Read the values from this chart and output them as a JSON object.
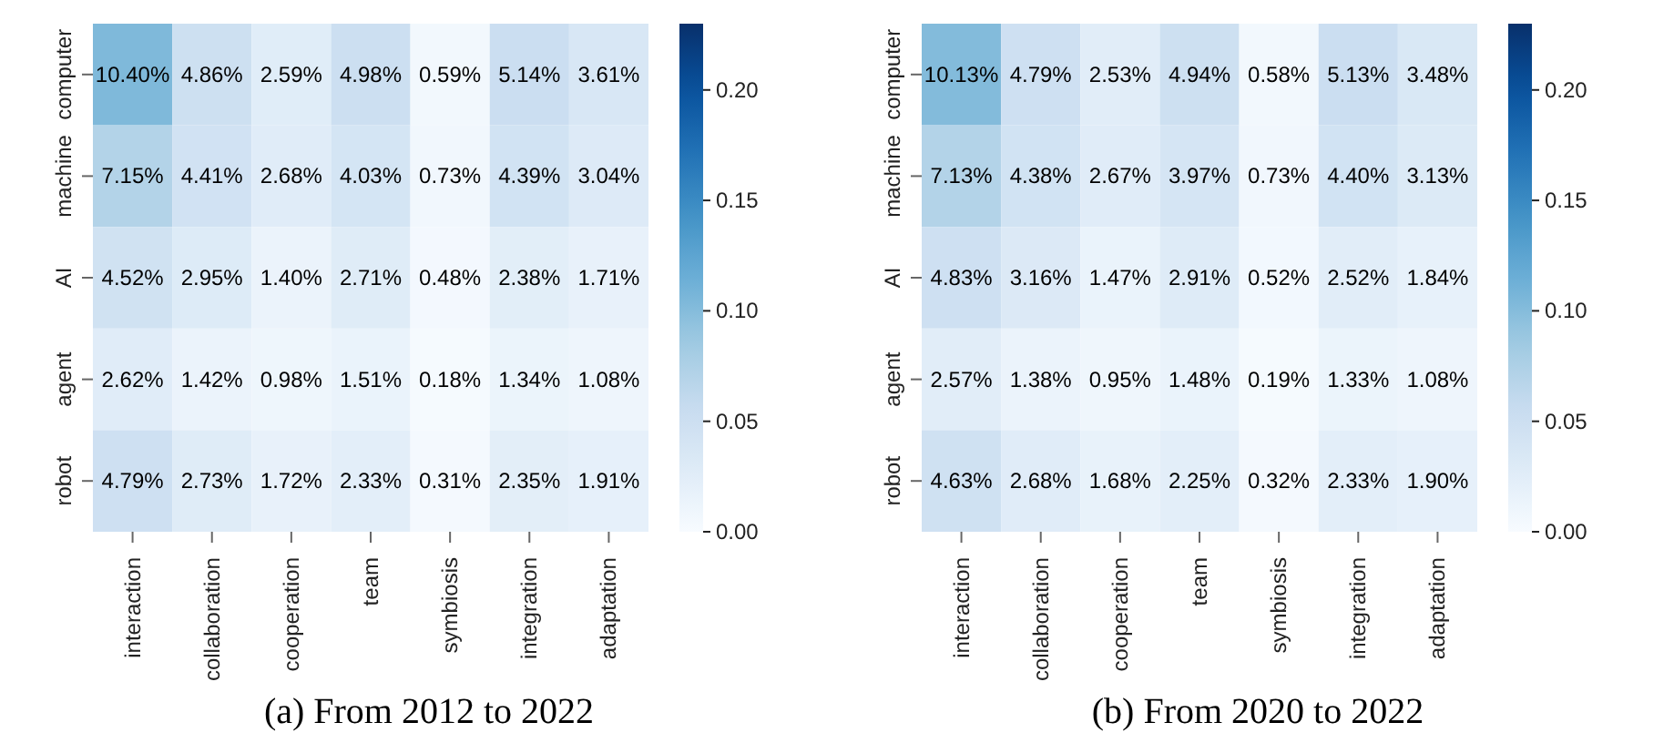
{
  "chart_data": [
    {
      "type": "heatmap",
      "title": "(a) From 2012 to 2022",
      "categories": [
        "interaction",
        "collaboration",
        "cooperation",
        "team",
        "symbiosis",
        "integration",
        "adaptation"
      ],
      "y_categories": [
        "computer",
        "machine",
        "AI",
        "agent",
        "robot"
      ],
      "cells": [
        [
          0.104,
          0.0486,
          0.0259,
          0.0498,
          0.0059,
          0.0514,
          0.0361
        ],
        [
          0.0715,
          0.0441,
          0.0268,
          0.0403,
          0.0073,
          0.0439,
          0.0304
        ],
        [
          0.0452,
          0.0295,
          0.014,
          0.0271,
          0.0048,
          0.0238,
          0.0171
        ],
        [
          0.0262,
          0.0142,
          0.0098,
          0.0151,
          0.0018,
          0.0134,
          0.0108
        ],
        [
          0.0479,
          0.0273,
          0.0172,
          0.0233,
          0.0031,
          0.0235,
          0.0191
        ]
      ],
      "cell_labels": [
        [
          "10.40%",
          "4.86%",
          "2.59%",
          "4.98%",
          "0.59%",
          "5.14%",
          "3.61%"
        ],
        [
          "7.15%",
          "4.41%",
          "2.68%",
          "4.03%",
          "0.73%",
          "4.39%",
          "3.04%"
        ],
        [
          "4.52%",
          "2.95%",
          "1.40%",
          "2.71%",
          "0.48%",
          "2.38%",
          "1.71%"
        ],
        [
          "2.62%",
          "1.42%",
          "0.98%",
          "1.51%",
          "0.18%",
          "1.34%",
          "1.08%"
        ],
        [
          "4.79%",
          "2.73%",
          "1.72%",
          "2.33%",
          "0.31%",
          "2.35%",
          "1.91%"
        ]
      ],
      "clim": [
        0,
        0.23
      ],
      "cticks": [
        {
          "value": 0,
          "label": "0.00"
        },
        {
          "value": 0.05,
          "label": "0.05"
        },
        {
          "value": 0.1,
          "label": "0.10"
        },
        {
          "value": 0.15,
          "label": "0.15"
        },
        {
          "value": 0.2,
          "label": "0.20"
        }
      ]
    },
    {
      "type": "heatmap",
      "title": "(b) From 2020 to 2022",
      "categories": [
        "interaction",
        "collaboration",
        "cooperation",
        "team",
        "symbiosis",
        "integration",
        "adaptation"
      ],
      "y_categories": [
        "computer",
        "machine",
        "AI",
        "agent",
        "robot"
      ],
      "cells": [
        [
          0.1013,
          0.0479,
          0.0253,
          0.0494,
          0.0058,
          0.0513,
          0.0348
        ],
        [
          0.0713,
          0.0438,
          0.0267,
          0.0397,
          0.0073,
          0.044,
          0.0313
        ],
        [
          0.0483,
          0.0316,
          0.0147,
          0.0291,
          0.0052,
          0.0252,
          0.0184
        ],
        [
          0.0257,
          0.0138,
          0.0095,
          0.0148,
          0.0019,
          0.0133,
          0.0108
        ],
        [
          0.0463,
          0.0268,
          0.0168,
          0.0225,
          0.0032,
          0.0233,
          0.019
        ]
      ],
      "cell_labels": [
        [
          "10.13%",
          "4.79%",
          "2.53%",
          "4.94%",
          "0.58%",
          "5.13%",
          "3.48%"
        ],
        [
          "7.13%",
          "4.38%",
          "2.67%",
          "3.97%",
          "0.73%",
          "4.40%",
          "3.13%"
        ],
        [
          "4.83%",
          "3.16%",
          "1.47%",
          "2.91%",
          "0.52%",
          "2.52%",
          "1.84%"
        ],
        [
          "2.57%",
          "1.38%",
          "0.95%",
          "1.48%",
          "0.19%",
          "1.33%",
          "1.08%"
        ],
        [
          "4.63%",
          "2.68%",
          "1.68%",
          "2.25%",
          "0.32%",
          "2.33%",
          "1.90%"
        ]
      ],
      "clim": [
        0,
        0.23
      ],
      "cticks": [
        {
          "value": 0,
          "label": "0.00"
        },
        {
          "value": 0.05,
          "label": "0.05"
        },
        {
          "value": 0.1,
          "label": "0.10"
        },
        {
          "value": 0.15,
          "label": "0.15"
        },
        {
          "value": 0.2,
          "label": "0.20"
        }
      ]
    }
  ]
}
